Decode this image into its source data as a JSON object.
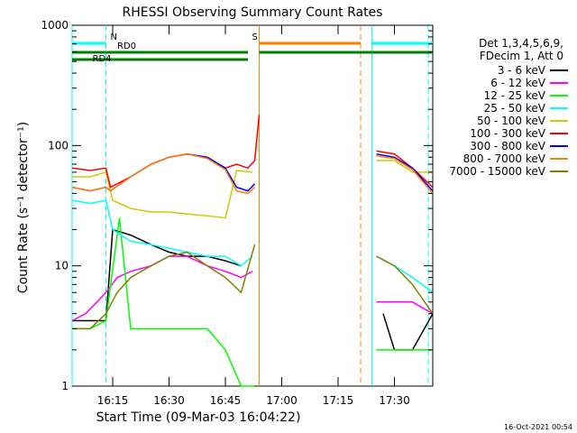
{
  "chart_data": {
    "type": "line",
    "title": "RHESSI Observing Summary Count Rates",
    "xlabel": "Start Time (09-Mar-03 16:04:22)",
    "ylabel": "Count Rate (s⁻¹ detector⁻¹)",
    "yscale": "log",
    "ylim": [
      1,
      1000
    ],
    "xlim_minutes": [
      16.07,
      17.67
    ],
    "yticks": [
      {
        "value": 1,
        "label": "1"
      },
      {
        "value": 10,
        "label": "10"
      },
      {
        "value": 100,
        "label": "100"
      },
      {
        "value": 1000,
        "label": "1000"
      }
    ],
    "xticks": [
      {
        "value": 16.25,
        "label": "16:15"
      },
      {
        "value": 16.5,
        "label": "16:30"
      },
      {
        "value": 16.75,
        "label": "16:45"
      },
      {
        "value": 17.0,
        "label": "17:00"
      },
      {
        "value": 17.25,
        "label": "17:15"
      },
      {
        "value": 17.5,
        "label": "17:30"
      }
    ],
    "legend": {
      "position": "top-right",
      "header": [
        "Det 1,3,4,5,6,9,",
        "FDecim 1, Att 0"
      ]
    },
    "series": [
      {
        "name": "3 - 6 keV",
        "color": "#000000",
        "points": [
          [
            16.07,
            3.5
          ],
          [
            16.15,
            3.5
          ],
          [
            16.22,
            3.5
          ],
          [
            16.25,
            20
          ],
          [
            16.33,
            18
          ],
          [
            16.42,
            15
          ],
          [
            16.5,
            13
          ],
          [
            16.58,
            12
          ],
          [
            16.67,
            12
          ],
          [
            16.75,
            11
          ],
          [
            16.82,
            10
          ],
          [
            16.87,
            null
          ],
          [
            17.4,
            null
          ],
          [
            17.45,
            4
          ],
          [
            17.5,
            2
          ],
          [
            17.58,
            2
          ],
          [
            17.67,
            4
          ]
        ]
      },
      {
        "name": "6 - 12 keV",
        "color": "#ff00ff",
        "points": [
          [
            16.07,
            3.5
          ],
          [
            16.13,
            4
          ],
          [
            16.18,
            5
          ],
          [
            16.22,
            6
          ],
          [
            16.27,
            8
          ],
          [
            16.33,
            9
          ],
          [
            16.42,
            10
          ],
          [
            16.5,
            12
          ],
          [
            16.58,
            12
          ],
          [
            16.67,
            10
          ],
          [
            16.75,
            9
          ],
          [
            16.82,
            8
          ],
          [
            16.87,
            9
          ],
          [
            16.9,
            null
          ],
          [
            17.4,
            null
          ],
          [
            17.42,
            5
          ],
          [
            17.5,
            5
          ],
          [
            17.58,
            5
          ],
          [
            17.67,
            4
          ]
        ]
      },
      {
        "name": "12 - 25 keV",
        "color": "#00ff00",
        "points": [
          [
            16.07,
            3
          ],
          [
            16.15,
            3
          ],
          [
            16.22,
            3.5
          ],
          [
            16.28,
            25
          ],
          [
            16.33,
            3
          ],
          [
            16.42,
            3
          ],
          [
            16.5,
            3
          ],
          [
            16.58,
            3
          ],
          [
            16.67,
            3
          ],
          [
            16.75,
            2
          ],
          [
            16.82,
            1
          ],
          [
            16.88,
            1
          ],
          [
            16.9,
            null
          ],
          [
            17.4,
            null
          ],
          [
            17.42,
            2
          ],
          [
            17.5,
            2
          ],
          [
            17.58,
            2
          ],
          [
            17.67,
            2
          ]
        ]
      },
      {
        "name": "25 - 50 keV",
        "color": "#00ffff",
        "points": [
          [
            16.07,
            35
          ],
          [
            16.15,
            33
          ],
          [
            16.22,
            35
          ],
          [
            16.25,
            20
          ],
          [
            16.33,
            16
          ],
          [
            16.42,
            15
          ],
          [
            16.5,
            14
          ],
          [
            16.58,
            13
          ],
          [
            16.67,
            12
          ],
          [
            16.75,
            12
          ],
          [
            16.82,
            10
          ],
          [
            16.87,
            12
          ],
          [
            16.9,
            null
          ],
          [
            17.4,
            null
          ],
          [
            17.42,
            12
          ],
          [
            17.5,
            10
          ],
          [
            17.58,
            8
          ],
          [
            17.67,
            6
          ]
        ]
      },
      {
        "name": "50 - 100 keV",
        "color": "#cccc00",
        "points": [
          [
            16.07,
            55
          ],
          [
            16.15,
            55
          ],
          [
            16.22,
            60
          ],
          [
            16.25,
            35
          ],
          [
            16.33,
            30
          ],
          [
            16.42,
            28
          ],
          [
            16.5,
            28
          ],
          [
            16.58,
            27
          ],
          [
            16.67,
            26
          ],
          [
            16.75,
            25
          ],
          [
            16.8,
            62
          ],
          [
            16.87,
            60
          ],
          [
            16.9,
            null
          ],
          [
            17.4,
            null
          ],
          [
            17.42,
            75
          ],
          [
            17.5,
            75
          ],
          [
            17.58,
            60
          ],
          [
            17.67,
            60
          ]
        ]
      },
      {
        "name": "100 - 300 keV",
        "color": "#ff0000",
        "points": [
          [
            16.07,
            65
          ],
          [
            16.15,
            62
          ],
          [
            16.22,
            65
          ],
          [
            16.24,
            45
          ],
          [
            16.33,
            55
          ],
          [
            16.42,
            70
          ],
          [
            16.5,
            80
          ],
          [
            16.58,
            85
          ],
          [
            16.67,
            80
          ],
          [
            16.75,
            65
          ],
          [
            16.8,
            70
          ],
          [
            16.85,
            65
          ],
          [
            16.88,
            75
          ],
          [
            16.9,
            180
          ],
          [
            16.9,
            null
          ],
          [
            17.4,
            null
          ],
          [
            17.42,
            90
          ],
          [
            17.5,
            85
          ],
          [
            17.58,
            65
          ],
          [
            17.67,
            45
          ]
        ]
      },
      {
        "name": "300 - 800 keV",
        "color": "#0000ff",
        "points": [
          [
            16.07,
            45
          ],
          [
            16.15,
            42
          ],
          [
            16.22,
            45
          ],
          [
            16.24,
            42
          ],
          [
            16.33,
            55
          ],
          [
            16.42,
            70
          ],
          [
            16.5,
            80
          ],
          [
            16.58,
            85
          ],
          [
            16.67,
            80
          ],
          [
            16.75,
            65
          ],
          [
            16.8,
            45
          ],
          [
            16.85,
            42
          ],
          [
            16.88,
            48
          ],
          [
            16.9,
            null
          ],
          [
            17.4,
            null
          ],
          [
            17.42,
            85
          ],
          [
            17.5,
            80
          ],
          [
            17.58,
            65
          ],
          [
            17.67,
            42
          ]
        ]
      },
      {
        "name": "800 - 7000 keV",
        "color": "#ff8000",
        "points": [
          [
            16.07,
            45
          ],
          [
            16.15,
            42
          ],
          [
            16.22,
            45
          ],
          [
            16.24,
            42
          ],
          [
            16.33,
            55
          ],
          [
            16.42,
            70
          ],
          [
            16.5,
            80
          ],
          [
            16.58,
            85
          ],
          [
            16.67,
            78
          ],
          [
            16.75,
            63
          ],
          [
            16.8,
            42
          ],
          [
            16.85,
            40
          ],
          [
            16.88,
            45
          ],
          [
            16.9,
            null
          ],
          [
            17.4,
            null
          ],
          [
            17.42,
            82
          ],
          [
            17.5,
            78
          ],
          [
            17.58,
            63
          ],
          [
            17.67,
            40
          ]
        ]
      },
      {
        "name": "7000 - 15000 keV",
        "color": "#808000",
        "points": [
          [
            16.07,
            3
          ],
          [
            16.15,
            3
          ],
          [
            16.22,
            4
          ],
          [
            16.27,
            6
          ],
          [
            16.33,
            8
          ],
          [
            16.42,
            10
          ],
          [
            16.5,
            12
          ],
          [
            16.58,
            13
          ],
          [
            16.67,
            10
          ],
          [
            16.75,
            8
          ],
          [
            16.82,
            6
          ],
          [
            16.88,
            15
          ],
          [
            16.9,
            null
          ],
          [
            17.4,
            null
          ],
          [
            17.42,
            12
          ],
          [
            17.5,
            10
          ],
          [
            17.58,
            7
          ],
          [
            17.67,
            4
          ]
        ]
      }
    ],
    "state_flags": [
      {
        "label": "N",
        "color": "#00ffff",
        "row": "top",
        "segments": [
          [
            16.07,
            16.22
          ],
          [
            17.4,
            17.67
          ]
        ]
      },
      {
        "label": "RD0",
        "color": "#008000",
        "row": "middle",
        "segments": [
          [
            16.07,
            16.85
          ],
          [
            16.9,
            17.67
          ]
        ]
      },
      {
        "label": "RD4",
        "color": "#008000",
        "row": "lower",
        "segments": [
          [
            16.07,
            16.22
          ],
          [
            16.22,
            16.85
          ]
        ]
      },
      {
        "label": "S",
        "color": "#ff8000",
        "row": "top",
        "segments": [
          [
            16.9,
            17.35
          ]
        ]
      }
    ],
    "markers": [
      {
        "time": 16.07,
        "color": "#00ffff",
        "style": "solid"
      },
      {
        "time": 16.22,
        "color": "#00ffff",
        "style": "dashed"
      },
      {
        "time": 16.9,
        "color": "#ff8000",
        "style": "solid"
      },
      {
        "time": 17.35,
        "color": "#ff8000",
        "style": "dashed"
      },
      {
        "time": 17.4,
        "color": "#00ffff",
        "style": "solid"
      },
      {
        "time": 17.65,
        "color": "#00ffff",
        "style": "dashed"
      }
    ]
  },
  "footer": {
    "timestamp": "16-Oct-2021 00:54"
  }
}
